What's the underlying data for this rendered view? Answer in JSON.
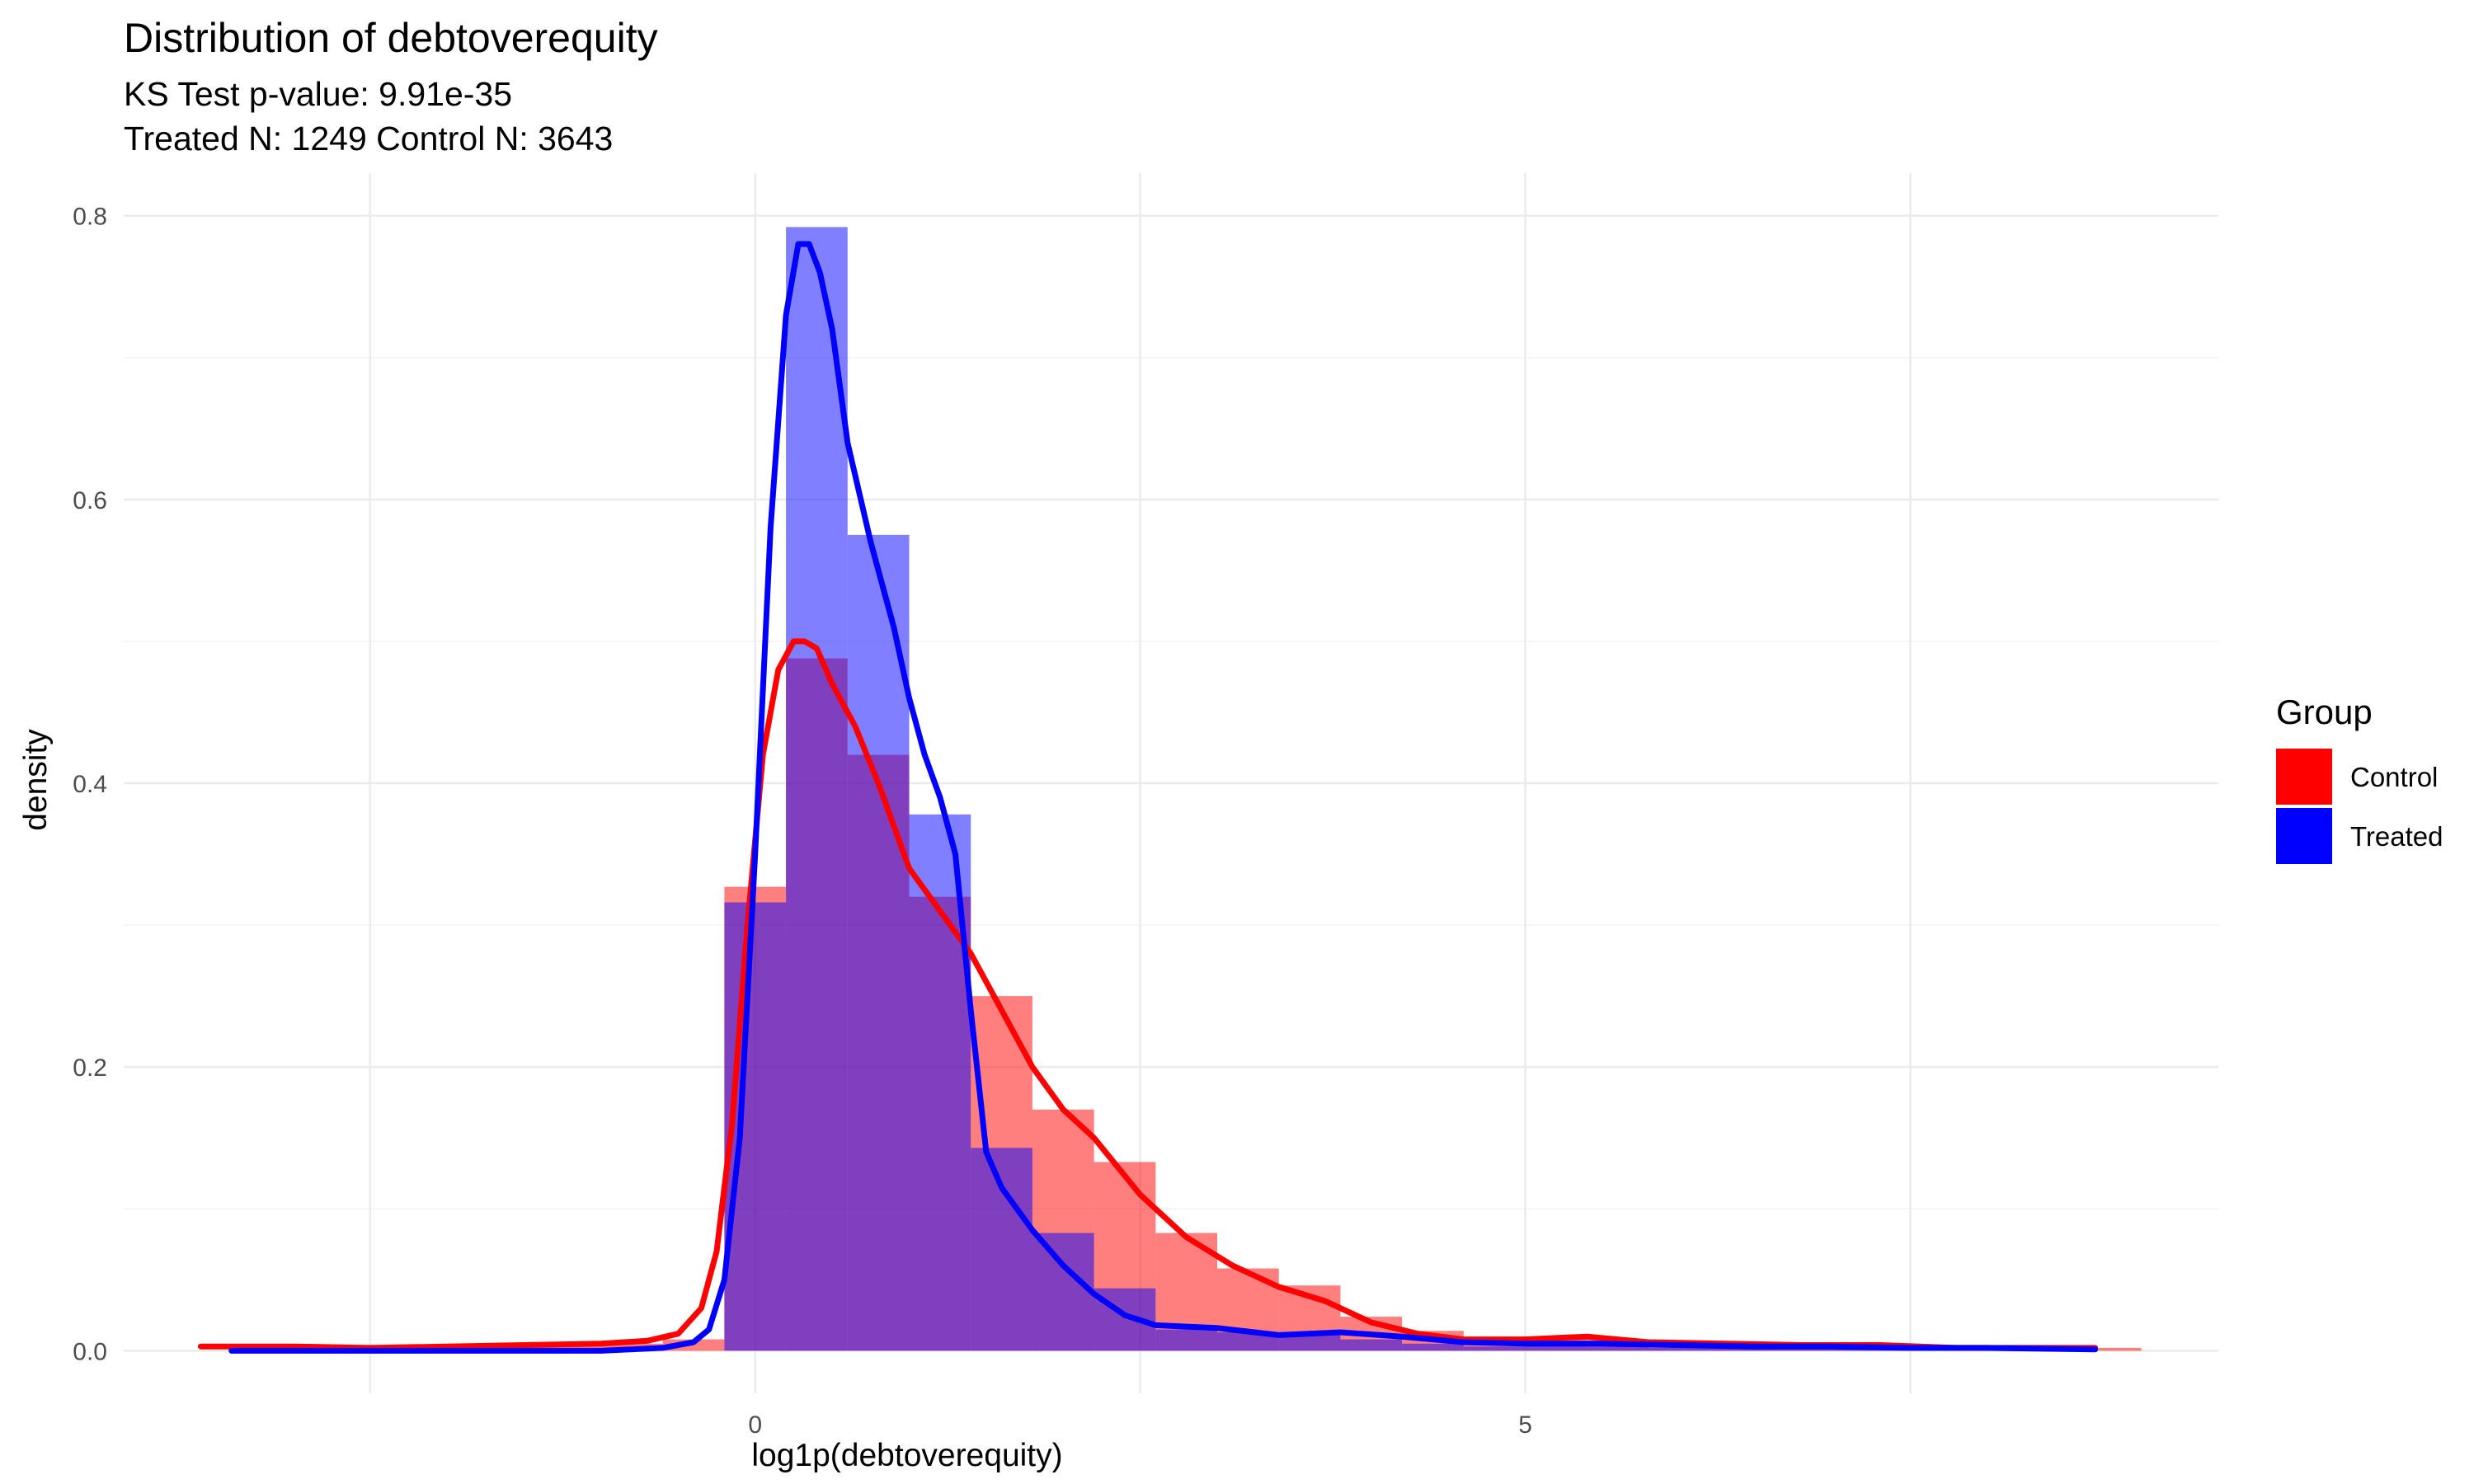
{
  "chart_data": {
    "type": "histogram-density",
    "title": "Distribution of debtoverequity",
    "subtitles": [
      "KS Test p-value: 9.91e-35",
      "Treated N: 1249 Control N: 3643"
    ],
    "xlabel": "log1p(debtoverequity)",
    "ylabel": "density",
    "xlim": [
      -4.1,
      9.5
    ],
    "ylim": [
      -0.03,
      0.83
    ],
    "x_ticks": [
      0,
      5
    ],
    "y_ticks": [
      0.0,
      0.2,
      0.4,
      0.6,
      0.8
    ],
    "grid": true,
    "legend": {
      "title": "Group",
      "position": "right"
    },
    "bin_width": 0.4,
    "bins_x_start": [
      -3.4,
      -3.0,
      -2.6,
      -2.2,
      -1.8,
      -1.4,
      -1.0,
      -0.6,
      -0.2,
      0.2,
      0.6,
      1.0,
      1.4,
      1.8,
      2.2,
      2.6,
      3.0,
      3.4,
      3.8,
      4.2,
      4.6,
      5.0,
      5.4,
      5.8,
      6.2,
      6.6,
      7.0,
      7.4,
      7.8,
      8.2,
      8.6
    ],
    "series": [
      {
        "name": "Control",
        "color": "#ff0000",
        "bin_density": [
          0.003,
          0.002,
          0.002,
          0.003,
          0.003,
          0.004,
          0.005,
          0.008,
          0.327,
          0.488,
          0.42,
          0.32,
          0.25,
          0.17,
          0.133,
          0.083,
          0.058,
          0.046,
          0.024,
          0.014,
          0.008,
          0.01,
          0.008,
          0.005,
          0.005,
          0.005,
          0.002,
          0.003,
          0.002,
          0.002,
          0.002
        ],
        "kde_x": [
          -3.6,
          -3.0,
          -2.5,
          -2.0,
          -1.5,
          -1.0,
          -0.7,
          -0.5,
          -0.35,
          -0.25,
          -0.15,
          -0.05,
          0.05,
          0.15,
          0.25,
          0.32,
          0.4,
          0.5,
          0.65,
          0.8,
          1.0,
          1.2,
          1.4,
          1.6,
          1.8,
          2.0,
          2.2,
          2.5,
          2.8,
          3.1,
          3.4,
          3.7,
          4.0,
          4.3,
          4.6,
          5.0,
          5.4,
          5.8,
          6.3,
          6.8,
          7.3,
          7.8,
          8.3,
          8.7
        ],
        "kde_y": [
          0.003,
          0.003,
          0.002,
          0.003,
          0.004,
          0.005,
          0.007,
          0.012,
          0.03,
          0.07,
          0.16,
          0.3,
          0.42,
          0.48,
          0.5,
          0.5,
          0.495,
          0.47,
          0.44,
          0.4,
          0.34,
          0.31,
          0.28,
          0.24,
          0.2,
          0.17,
          0.15,
          0.11,
          0.08,
          0.06,
          0.045,
          0.035,
          0.02,
          0.012,
          0.008,
          0.008,
          0.01,
          0.006,
          0.005,
          0.004,
          0.004,
          0.002,
          0.002,
          0.002
        ]
      },
      {
        "name": "Treated",
        "color": "#0000ff",
        "bin_density": [
          0.0,
          0.0,
          0.0,
          0.0,
          0.0,
          0.0,
          0.0,
          0.0,
          0.316,
          0.792,
          0.575,
          0.378,
          0.143,
          0.083,
          0.044,
          0.015,
          0.013,
          0.012,
          0.008,
          0.005,
          0.003,
          0.004,
          0.003,
          0.002,
          0.002,
          0.001,
          0.002,
          0.001,
          0.001,
          0.0,
          0.0
        ],
        "kde_x": [
          -3.4,
          -3.0,
          -2.0,
          -1.0,
          -0.6,
          -0.4,
          -0.3,
          -0.2,
          -0.1,
          0.0,
          0.1,
          0.2,
          0.28,
          0.35,
          0.42,
          0.5,
          0.6,
          0.75,
          0.9,
          1.0,
          1.1,
          1.2,
          1.3,
          1.4,
          1.5,
          1.6,
          1.7,
          1.8,
          2.0,
          2.2,
          2.4,
          2.6,
          2.8,
          3.0,
          3.4,
          3.8,
          4.2,
          4.6,
          5.0,
          5.5,
          6.0,
          6.5,
          7.0,
          7.5,
          8.0,
          8.7
        ],
        "kde_y": [
          0.0,
          0.0,
          0.0,
          0.0,
          0.002,
          0.006,
          0.015,
          0.05,
          0.15,
          0.35,
          0.58,
          0.73,
          0.78,
          0.78,
          0.76,
          0.72,
          0.64,
          0.57,
          0.51,
          0.46,
          0.42,
          0.39,
          0.35,
          0.24,
          0.14,
          0.115,
          0.1,
          0.085,
          0.06,
          0.04,
          0.025,
          0.018,
          0.017,
          0.016,
          0.011,
          0.013,
          0.01,
          0.006,
          0.005,
          0.005,
          0.004,
          0.003,
          0.003,
          0.002,
          0.002,
          0.001
        ]
      }
    ]
  }
}
